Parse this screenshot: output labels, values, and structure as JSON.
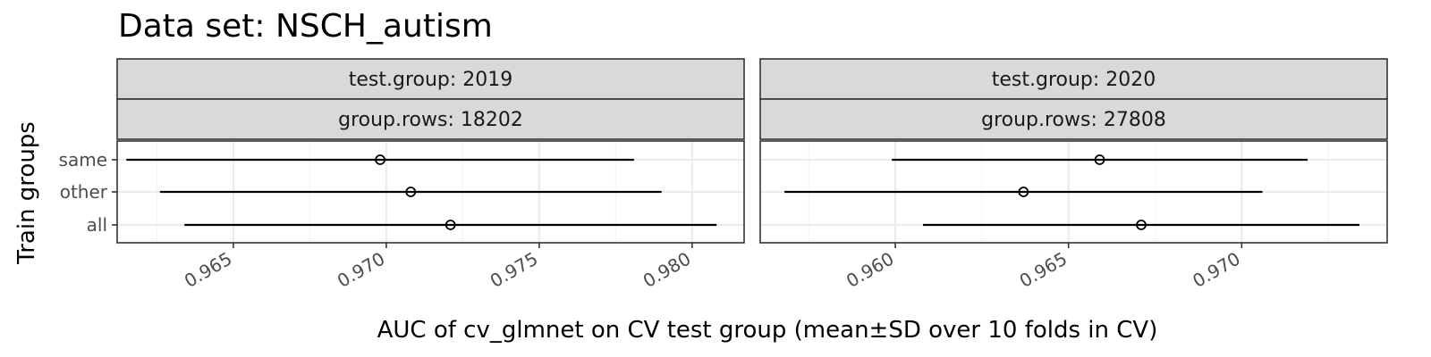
{
  "chart_data": {
    "type": "errorbar",
    "title": "Data set: NSCH_autism",
    "xlabel": "AUC of cv_glmnet on CV test group (mean±SD over 10 folds in CV)",
    "ylabel": "Train groups",
    "categories": [
      "same",
      "other",
      "all"
    ],
    "grid": true,
    "panels": [
      {
        "strips": [
          "test.group: 2019",
          "group.rows: 18202"
        ],
        "xlim": [
          0.9612,
          0.9817
        ],
        "xticks": [
          0.965,
          0.97,
          0.975,
          0.98
        ],
        "xtick_labels": [
          "0.965",
          "0.970",
          "0.975",
          "0.980"
        ],
        "points": [
          {
            "category": "same",
            "mean": 0.9698,
            "sd": 0.0083
          },
          {
            "category": "other",
            "mean": 0.9708,
            "sd": 0.0082
          },
          {
            "category": "all",
            "mean": 0.9721,
            "sd": 0.0087
          }
        ]
      },
      {
        "strips": [
          "test.group: 2020",
          "group.rows: 27808"
        ],
        "xlim": [
          0.9561,
          0.9742
        ],
        "xticks": [
          0.96,
          0.965,
          0.97
        ],
        "xtick_labels": [
          "0.960",
          "0.965",
          "0.970"
        ],
        "points": [
          {
            "category": "same",
            "mean": 0.9659,
            "sd": 0.006
          },
          {
            "category": "other",
            "mean": 0.9637,
            "sd": 0.0069
          },
          {
            "category": "all",
            "mean": 0.9671,
            "sd": 0.0063
          }
        ]
      }
    ]
  },
  "colors": {
    "strip_fill": "#d9d9d9",
    "panel_border": "#333333",
    "grid_major": "#ebebeb",
    "grid_minor": "#f5f5f5",
    "data": "#000000",
    "tick": "#333333"
  }
}
